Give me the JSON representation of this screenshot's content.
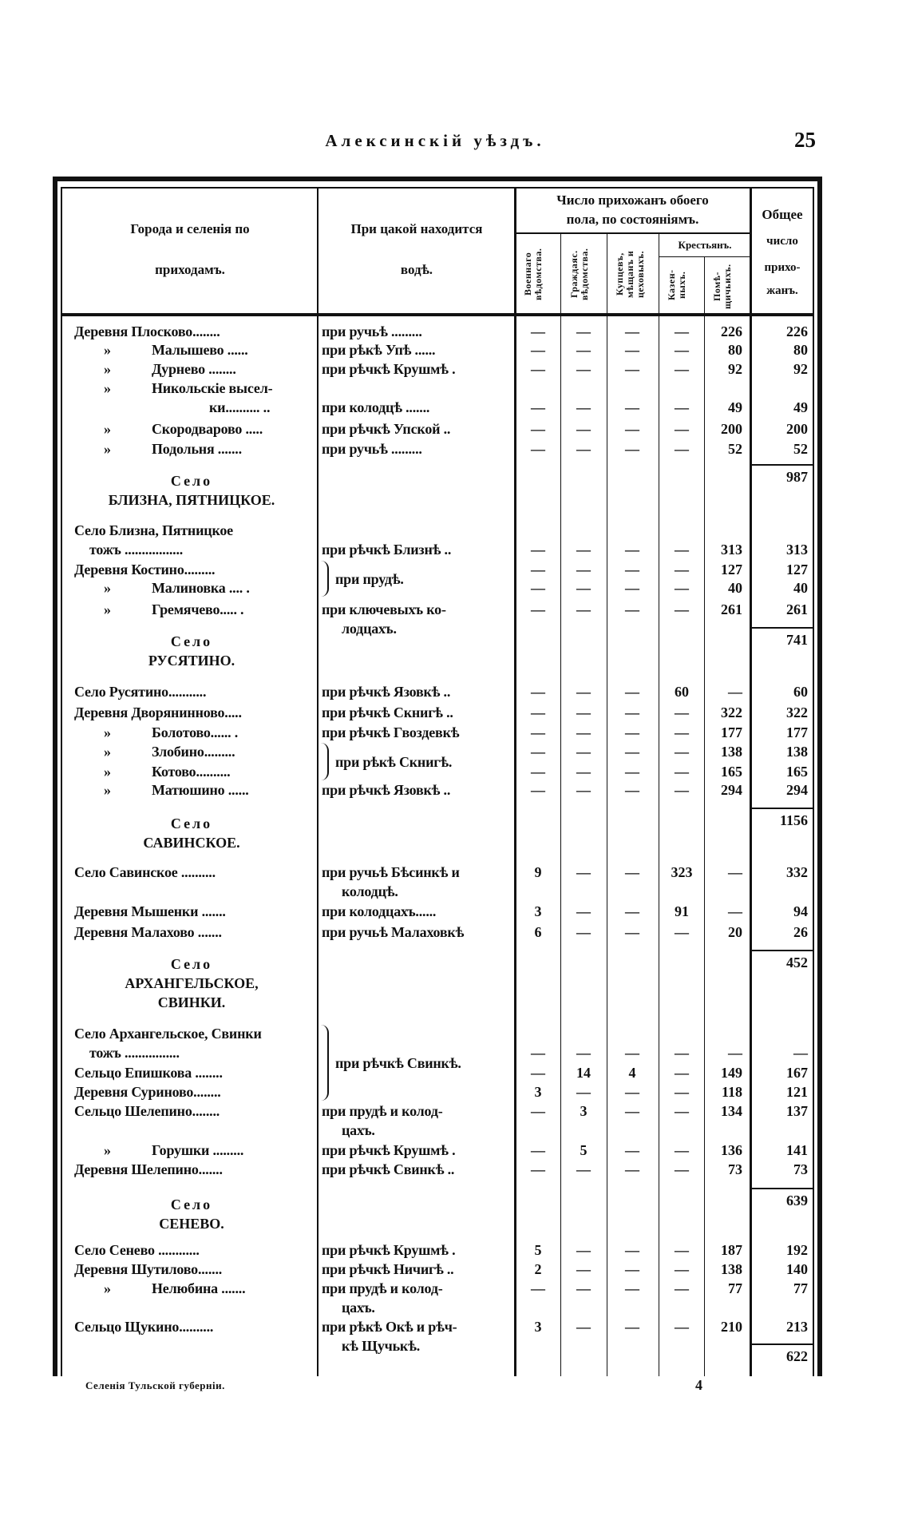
{
  "page_header": {
    "title": "Алексинскій уѣздъ.",
    "page_number": "25"
  },
  "table": {
    "headers": {
      "settlements": [
        "Города и селенія по",
        "приходамъ."
      ],
      "water": [
        "При цакой находится",
        "водѣ."
      ],
      "parishioners_group": [
        "Число прихожанъ обоего",
        "пола, по состояніямъ."
      ],
      "military": [
        "Военнаго",
        "вѣдомства."
      ],
      "civil": [
        "Граждаяс.",
        "вѣдомства."
      ],
      "merchants": [
        "Купцевъ,",
        "мѣщанъ и",
        "цеховыхъ."
      ],
      "peasants": "Крестьянъ.",
      "state_peasants": [
        "Казен-",
        "ныхъ."
      ],
      "landlord_peasants": [
        "Помѣ-",
        "щичьихъ."
      ],
      "total": [
        "Общее",
        "число",
        "прихо-",
        "жанъ."
      ]
    },
    "ditto_mark": "»",
    "braces": [
      {
        "text": "при прудѣ."
      },
      {
        "text": "при рѣкѣ Скнигѣ."
      },
      {
        "text": "при рѣчкѣ Свинкѣ."
      }
    ],
    "rows": [
      {
        "type": "entry",
        "ditto": false,
        "name": [
          "Деревня Плосково........"
        ],
        "water": [
          "при ручьѣ ........."
        ],
        "values": [
          "—",
          "—",
          "—",
          "—",
          "226"
        ],
        "total": "226"
      },
      {
        "type": "entry",
        "ditto": true,
        "name": [
          "Малышево ......"
        ],
        "water": [
          "при рѣкѣ Упѣ ......"
        ],
        "values": [
          "—",
          "—",
          "—",
          "—",
          "80"
        ],
        "total": "80"
      },
      {
        "type": "entry",
        "ditto": true,
        "name": [
          "Дурнево ........"
        ],
        "water": [
          "при рѣчкѣ Крушмѣ ."
        ],
        "values": [
          "—",
          "—",
          "—",
          "—",
          "92"
        ],
        "total": "92"
      },
      {
        "type": "entry",
        "ditto": true,
        "name": [
          "Никольскіе высел-",
          "ки.......... .."
        ],
        "water": [
          "при колодцѣ ......."
        ],
        "values": [
          "—",
          "—",
          "—",
          "—",
          "49"
        ],
        "total": "49"
      },
      {
        "type": "entry",
        "ditto": true,
        "name": [
          "Скородварово ....."
        ],
        "water": [
          "при рѣчкѣ Упской .."
        ],
        "values": [
          "—",
          "—",
          "—",
          "—",
          "200"
        ],
        "total": "200"
      },
      {
        "type": "entry",
        "ditto": true,
        "name": [
          "Подольня ......."
        ],
        "water": [
          "при ручьѣ ........."
        ],
        "values": [
          "—",
          "—",
          "—",
          "—",
          "52"
        ],
        "total": "52"
      },
      {
        "type": "total",
        "value": "987"
      },
      {
        "type": "section",
        "label": "Село",
        "title": [
          "БЛИЗНА, ПЯТНИЦКОЕ."
        ]
      },
      {
        "type": "entry",
        "ditto": false,
        "name": [
          "Село Близна, Пятницкое",
          "тожъ ................."
        ],
        "water": [
          "при рѣчкѣ Близнѣ .."
        ],
        "values": [
          "—",
          "—",
          "—",
          "—",
          "313"
        ],
        "total": "313"
      },
      {
        "type": "entry",
        "ditto": false,
        "brace": 0,
        "name": [
          "Деревня Костино........."
        ],
        "water": [],
        "values": [
          "—",
          "—",
          "—",
          "—",
          "127"
        ],
        "total": "127"
      },
      {
        "type": "entry",
        "ditto": true,
        "brace": 0,
        "name": [
          "Малиновка .... ."
        ],
        "water": [],
        "values": [
          "—",
          "—",
          "—",
          "—",
          "40"
        ],
        "total": "40"
      },
      {
        "type": "entry",
        "ditto": true,
        "name": [
          "Гремячево..... ."
        ],
        "water": [
          "при ключевыхъ ко-",
          "лодцахъ."
        ],
        "values": [
          "—",
          "—",
          "—",
          "—",
          "261"
        ],
        "total": "261"
      },
      {
        "type": "total",
        "value": "741"
      },
      {
        "type": "section",
        "label": "Село",
        "title": [
          "РУСЯТИНО."
        ]
      },
      {
        "type": "entry",
        "ditto": false,
        "name": [
          "Село Русятино..........."
        ],
        "water": [
          "при рѣчкѣ Язовкѣ .."
        ],
        "values": [
          "—",
          "—",
          "—",
          "60",
          "—"
        ],
        "total": "60"
      },
      {
        "type": "entry",
        "ditto": false,
        "name": [
          "Деревня Дворянинново....."
        ],
        "water": [
          "при рѣчкѣ Скнигѣ .."
        ],
        "values": [
          "—",
          "—",
          "—",
          "—",
          "322"
        ],
        "total": "322"
      },
      {
        "type": "entry",
        "ditto": true,
        "name": [
          "Болотово...... ."
        ],
        "water": [
          "при рѣчкѣ Гвоздевкѣ"
        ],
        "values": [
          "—",
          "—",
          "—",
          "—",
          "177"
        ],
        "total": "177"
      },
      {
        "type": "entry",
        "ditto": true,
        "brace": 1,
        "name": [
          "Злобино........."
        ],
        "water": [],
        "values": [
          "—",
          "—",
          "—",
          "—",
          "138"
        ],
        "total": "138"
      },
      {
        "type": "entry",
        "ditto": true,
        "brace": 1,
        "name": [
          "Котово.........."
        ],
        "water": [],
        "values": [
          "—",
          "—",
          "—",
          "—",
          "165"
        ],
        "total": "165"
      },
      {
        "type": "entry",
        "ditto": true,
        "name": [
          "Матюшино ......"
        ],
        "water": [
          "при рѣчкѣ Язовкѣ .."
        ],
        "values": [
          "—",
          "—",
          "—",
          "—",
          "294"
        ],
        "total": "294"
      },
      {
        "type": "total",
        "value": "1156"
      },
      {
        "type": "section",
        "label": "Село",
        "title": [
          "САВИНСКОЕ."
        ]
      },
      {
        "type": "entry",
        "ditto": false,
        "name": [
          "Село Савинское .........."
        ],
        "water": [
          "при ручьѣ Бѣсинкѣ и",
          "колодцѣ."
        ],
        "values": [
          "9",
          "—",
          "—",
          "323",
          "—"
        ],
        "total": "332"
      },
      {
        "type": "entry",
        "ditto": false,
        "name": [
          "Деревня Мышенки ......."
        ],
        "water": [
          "при колодцахъ......"
        ],
        "values": [
          "3",
          "—",
          "—",
          "91",
          "—"
        ],
        "total": "94"
      },
      {
        "type": "entry",
        "ditto": false,
        "name": [
          "Деревня Малахово ......."
        ],
        "water": [
          "при ручьѣ Малаховкѣ"
        ],
        "values": [
          "6",
          "—",
          "—",
          "—",
          "20"
        ],
        "total": "26"
      },
      {
        "type": "total",
        "value": "452"
      },
      {
        "type": "section",
        "label": "Село",
        "title": [
          "АРХАНГЕЛЬСКОЕ,",
          "СВИНКИ."
        ]
      },
      {
        "type": "entry",
        "ditto": false,
        "brace": 2,
        "name": [
          "Село Архангельское, Свинки",
          "тожъ ................"
        ],
        "water": [],
        "values": [
          "—",
          "—",
          "—",
          "—",
          "—"
        ],
        "total": "—"
      },
      {
        "type": "entry",
        "ditto": false,
        "brace": 2,
        "name": [
          "Сельцо Епишкова ........"
        ],
        "water": [],
        "values": [
          "—",
          "14",
          "4",
          "—",
          "149"
        ],
        "total": "167"
      },
      {
        "type": "entry",
        "ditto": false,
        "brace": 2,
        "name": [
          "Деревня Суриново........"
        ],
        "water": [],
        "values": [
          "3",
          "—",
          "—",
          "—",
          "118"
        ],
        "total": "121"
      },
      {
        "type": "entry",
        "ditto": false,
        "name": [
          "Сельцо Шелепино........"
        ],
        "water": [
          "при прудѣ и колод-",
          "цахъ."
        ],
        "values": [
          "—",
          "3",
          "—",
          "—",
          "134"
        ],
        "total": "137"
      },
      {
        "type": "entry",
        "ditto": true,
        "name": [
          "Горушки ........."
        ],
        "water": [
          "при рѣчкѣ Крушмѣ ."
        ],
        "values": [
          "—",
          "5",
          "—",
          "—",
          "136"
        ],
        "total": "141"
      },
      {
        "type": "entry",
        "ditto": false,
        "name": [
          "Деревня Шелепино......."
        ],
        "water": [
          "при рѣчкѣ Свинкѣ .."
        ],
        "values": [
          "—",
          "—",
          "—",
          "—",
          "73"
        ],
        "total": "73"
      },
      {
        "type": "total",
        "value": "639"
      },
      {
        "type": "section",
        "label": "Село",
        "title": [
          "СЕНЕВО."
        ]
      },
      {
        "type": "entry",
        "ditto": false,
        "name": [
          "Село Сенево ............"
        ],
        "water": [
          "при рѣчкѣ Крушмѣ ."
        ],
        "values": [
          "5",
          "—",
          "—",
          "—",
          "187"
        ],
        "total": "192"
      },
      {
        "type": "entry",
        "ditto": false,
        "name": [
          "Деревня Шутилово......."
        ],
        "water": [
          "при рѣчкѣ Ничигѣ .."
        ],
        "values": [
          "2",
          "—",
          "—",
          "—",
          "138"
        ],
        "total": "140"
      },
      {
        "type": "entry",
        "ditto": true,
        "name": [
          "Нелюбина ......."
        ],
        "water": [
          "при прудѣ и колод-",
          "цахъ."
        ],
        "values": [
          "—",
          "—",
          "—",
          "—",
          "77"
        ],
        "total": "77"
      },
      {
        "type": "entry",
        "ditto": false,
        "name": [
          "Сельцо Щукино.........."
        ],
        "water": [
          "при рѣкѣ Окѣ и рѣч-",
          "кѣ Щучькѣ."
        ],
        "values": [
          "3",
          "—",
          "—",
          "—",
          "210"
        ],
        "total": "213"
      },
      {
        "type": "total",
        "value": "622"
      }
    ]
  },
  "footer": {
    "signature": "Селенія Тульской губерніи.",
    "sheet_number": "4"
  }
}
